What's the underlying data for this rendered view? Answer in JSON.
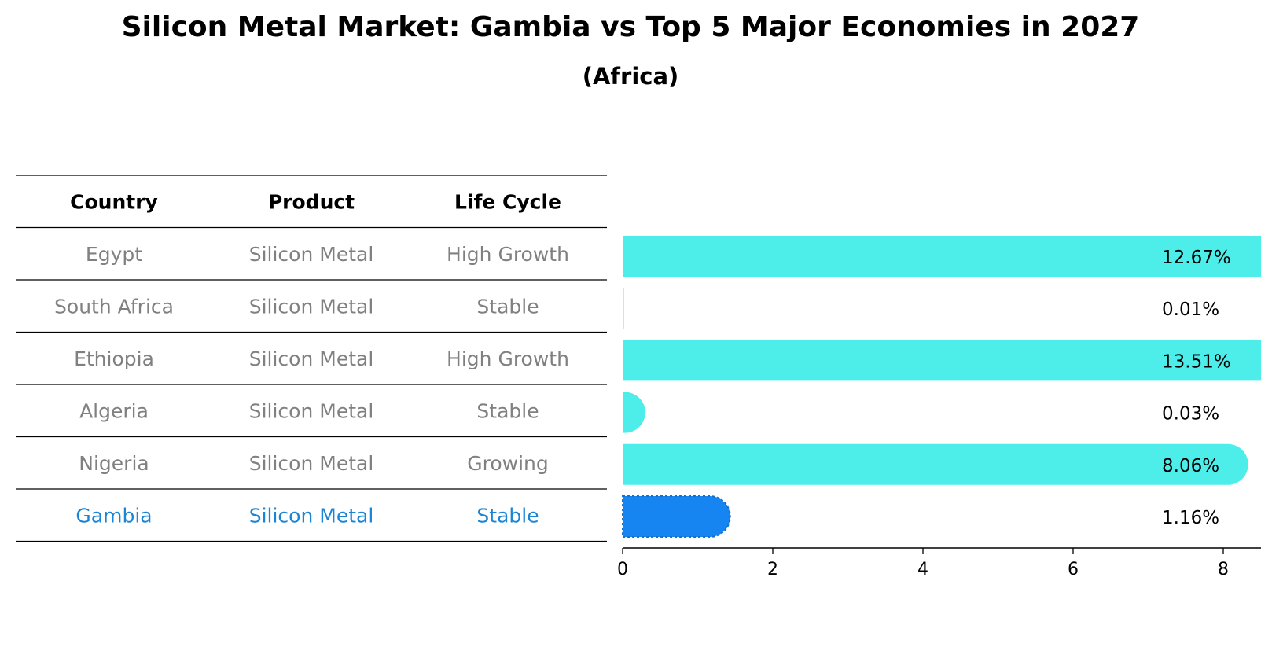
{
  "title": "Silicon Metal Market: Gambia vs Top 5 Major Economies in 2027",
  "subtitle": "(Africa)",
  "table": {
    "headers": [
      "Country",
      "Product",
      "Life Cycle"
    ],
    "rows": [
      {
        "country": "Egypt",
        "product": "Silicon Metal",
        "life_cycle": "High Growth",
        "highlight": false
      },
      {
        "country": "South Africa",
        "product": "Silicon Metal",
        "life_cycle": "Stable",
        "highlight": false
      },
      {
        "country": "Ethiopia",
        "product": "Silicon Metal",
        "life_cycle": "High Growth",
        "highlight": false
      },
      {
        "country": "Algeria",
        "product": "Silicon Metal",
        "life_cycle": "Stable",
        "highlight": false
      },
      {
        "country": "Nigeria",
        "product": "Silicon Metal",
        "life_cycle": "Growing",
        "highlight": false
      },
      {
        "country": "Gambia",
        "product": "Silicon Metal",
        "life_cycle": "Stable",
        "highlight": true
      }
    ]
  },
  "colors": {
    "bar": "#4DEEEA",
    "highlight_bar": "#1685F2",
    "text_muted": "#808080",
    "text_highlight": "#1a85d6"
  },
  "chart_data": {
    "type": "bar",
    "orientation": "horizontal",
    "categories": [
      "Egypt",
      "South Africa",
      "Ethiopia",
      "Algeria",
      "Nigeria",
      "Gambia"
    ],
    "values": [
      12.67,
      0.01,
      13.51,
      0.03,
      8.06,
      1.16
    ],
    "value_labels": [
      "12.67%",
      "0.01%",
      "13.51%",
      "0.03%",
      "8.06%",
      "1.16%"
    ],
    "highlight_category": "Gambia",
    "xlim": [
      0,
      14.2
    ],
    "xticks": [
      0,
      2,
      4,
      6,
      8,
      10,
      12,
      14
    ],
    "xlabel": "",
    "ylabel": "",
    "grid": false
  }
}
